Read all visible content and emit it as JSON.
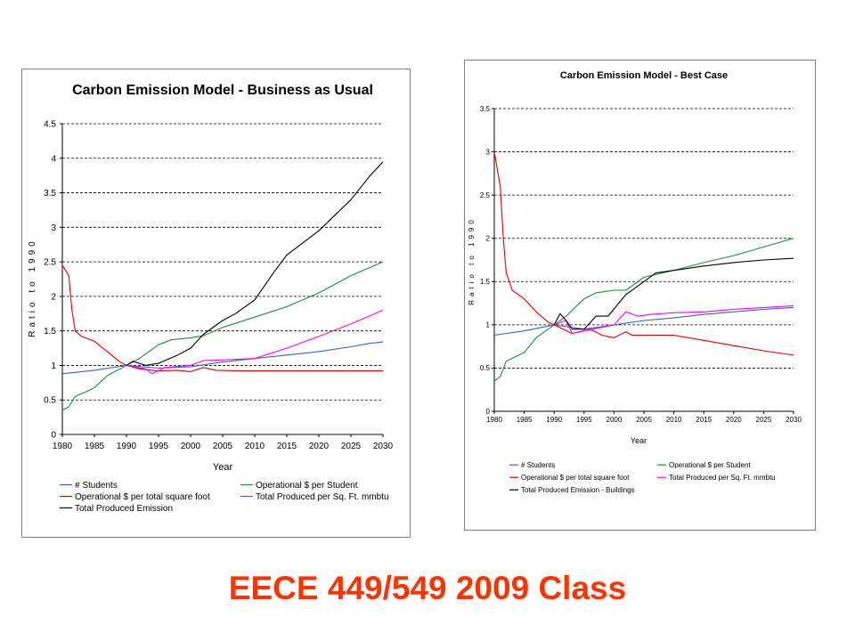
{
  "footer": {
    "text": "EECE 449/549 2009 Class",
    "color": "#ff3300"
  },
  "chart_data": [
    {
      "type": "line",
      "title": "Carbon Emission Model - Business as Usual",
      "xlabel": "Year",
      "ylabel": "Ratio to 1990",
      "xlim": [
        1980,
        2030
      ],
      "ylim": [
        0,
        4.5
      ],
      "xticks": [
        1980,
        1985,
        1990,
        1995,
        2000,
        2005,
        2010,
        2015,
        2020,
        2025,
        2030
      ],
      "yticks": [
        0,
        0.5,
        1,
        1.5,
        2,
        2.5,
        3,
        3.5,
        4,
        4.5
      ],
      "ytick_labels": [
        "0",
        "0.5",
        "1",
        "1.5",
        "2",
        "2.5",
        "3",
        "3.5",
        "4",
        "4.5"
      ],
      "grid": "horizontal dashed",
      "legend_position": "bottom",
      "series": [
        {
          "name": "# Students",
          "color": "#3a5fcd",
          "points": [
            [
              1980,
              0.88
            ],
            [
              1985,
              0.93
            ],
            [
              1990,
              1.0
            ],
            [
              1995,
              0.96
            ],
            [
              2000,
              0.98
            ],
            [
              2005,
              1.05
            ],
            [
              2010,
              1.1
            ],
            [
              2015,
              1.15
            ],
            [
              2020,
              1.2
            ],
            [
              2025,
              1.27
            ],
            [
              2028,
              1.32
            ],
            [
              2030,
              1.34
            ]
          ]
        },
        {
          "name": "Operational $ per Student",
          "color": "#1e8c3c",
          "points": [
            [
              1980,
              0.35
            ],
            [
              1981,
              0.4
            ],
            [
              1982,
              0.55
            ],
            [
              1984,
              0.63
            ],
            [
              1985,
              0.68
            ],
            [
              1987,
              0.85
            ],
            [
              1990,
              1.0
            ],
            [
              1992,
              1.1
            ],
            [
              1995,
              1.3
            ],
            [
              1997,
              1.37
            ],
            [
              2000,
              1.4
            ],
            [
              2002,
              1.43
            ],
            [
              2005,
              1.55
            ],
            [
              2010,
              1.7
            ],
            [
              2015,
              1.85
            ],
            [
              2020,
              2.05
            ],
            [
              2025,
              2.3
            ],
            [
              2030,
              2.5
            ]
          ]
        },
        {
          "name": "Operational $ per total square foot",
          "color": "#e00000",
          "points": [
            [
              1980,
              2.45
            ],
            [
              1981,
              2.3
            ],
            [
              1981.5,
              1.8
            ],
            [
              1982,
              1.5
            ],
            [
              1983,
              1.42
            ],
            [
              1985,
              1.35
            ],
            [
              1987,
              1.2
            ],
            [
              1989,
              1.05
            ],
            [
              1990,
              1.0
            ],
            [
              1992,
              0.95
            ],
            [
              1995,
              0.92
            ],
            [
              1998,
              0.93
            ],
            [
              2000,
              0.91
            ],
            [
              2002,
              0.97
            ],
            [
              2004,
              0.93
            ],
            [
              2008,
              0.92
            ],
            [
              2015,
              0.92
            ],
            [
              2020,
              0.92
            ],
            [
              2025,
              0.92
            ],
            [
              2030,
              0.92
            ]
          ]
        },
        {
          "name": "Total Produced per Sq. Ft. mmbtu",
          "color": "#ff00ff",
          "points": [
            [
              1990,
              1.0
            ],
            [
              1993,
              0.95
            ],
            [
              1994,
              0.88
            ],
            [
              1996,
              0.97
            ],
            [
              2000,
              1.0
            ],
            [
              2002,
              1.07
            ],
            [
              2005,
              1.08
            ],
            [
              2010,
              1.1
            ],
            [
              2015,
              1.25
            ],
            [
              2020,
              1.42
            ],
            [
              2025,
              1.6
            ],
            [
              2028,
              1.72
            ],
            [
              2030,
              1.8
            ]
          ]
        },
        {
          "name": "Total Produced Emission",
          "color": "#000000",
          "points": [
            [
              1990,
              1.0
            ],
            [
              1991,
              1.06
            ],
            [
              1993,
              1.0
            ],
            [
              1995,
              1.03
            ],
            [
              1998,
              1.15
            ],
            [
              2000,
              1.25
            ],
            [
              2002,
              1.45
            ],
            [
              2005,
              1.65
            ],
            [
              2007,
              1.75
            ],
            [
              2010,
              1.95
            ],
            [
              2013,
              2.35
            ],
            [
              2015,
              2.6
            ],
            [
              2020,
              2.95
            ],
            [
              2025,
              3.4
            ],
            [
              2028,
              3.75
            ],
            [
              2030,
              3.95
            ]
          ]
        }
      ]
    },
    {
      "type": "line",
      "title": "Carbon Emission Model - Best Case",
      "xlabel": "Year",
      "ylabel": "Ratio to 1990",
      "xlim": [
        1980,
        2030
      ],
      "ylim": [
        0,
        3.5
      ],
      "xticks": [
        1980,
        1985,
        1990,
        1995,
        2000,
        2005,
        2010,
        2015,
        2020,
        2025,
        2030
      ],
      "yticks": [
        0,
        0.5,
        1,
        1.5,
        2,
        2.5,
        3,
        3.5
      ],
      "ytick_labels": [
        "0",
        "0.5",
        "1",
        "1.5",
        "2",
        "2.5",
        "3",
        "3.5"
      ],
      "grid": "horizontal dashed",
      "legend_position": "bottom",
      "series": [
        {
          "name": "# Students",
          "color": "#3a5fcd",
          "points": [
            [
              1980,
              0.88
            ],
            [
              1985,
              0.93
            ],
            [
              1990,
              1.0
            ],
            [
              1995,
              0.95
            ],
            [
              2000,
              1.0
            ],
            [
              2005,
              1.05
            ],
            [
              2010,
              1.08
            ],
            [
              2015,
              1.12
            ],
            [
              2020,
              1.15
            ],
            [
              2025,
              1.18
            ],
            [
              2030,
              1.2
            ]
          ]
        },
        {
          "name": "Operational $ per Student",
          "color": "#1e8c3c",
          "points": [
            [
              1980,
              0.35
            ],
            [
              1981,
              0.4
            ],
            [
              1982,
              0.58
            ],
            [
              1985,
              0.68
            ],
            [
              1987,
              0.85
            ],
            [
              1990,
              1.0
            ],
            [
              1992,
              1.1
            ],
            [
              1995,
              1.3
            ],
            [
              1997,
              1.37
            ],
            [
              2000,
              1.4
            ],
            [
              2002,
              1.4
            ],
            [
              2005,
              1.55
            ],
            [
              2010,
              1.63
            ],
            [
              2015,
              1.72
            ],
            [
              2020,
              1.8
            ],
            [
              2025,
              1.9
            ],
            [
              2030,
              2.0
            ]
          ]
        },
        {
          "name": "Operational $ per total square foot",
          "color": "#e00000",
          "points": [
            [
              1980,
              3.0
            ],
            [
              1981,
              2.6
            ],
            [
              1981.5,
              2.0
            ],
            [
              1982,
              1.6
            ],
            [
              1983,
              1.4
            ],
            [
              1985,
              1.3
            ],
            [
              1987,
              1.15
            ],
            [
              1989,
              1.03
            ],
            [
              1990,
              1.0
            ],
            [
              1993,
              0.9
            ],
            [
              1996,
              0.95
            ],
            [
              1998,
              0.88
            ],
            [
              2000,
              0.85
            ],
            [
              2002,
              0.92
            ],
            [
              2003,
              0.88
            ],
            [
              2006,
              0.88
            ],
            [
              2010,
              0.88
            ],
            [
              2015,
              0.82
            ],
            [
              2020,
              0.76
            ],
            [
              2025,
              0.7
            ],
            [
              2030,
              0.65
            ]
          ]
        },
        {
          "name": "Total Produced per Sq. Ft. mmbtu",
          "color": "#ff00ff",
          "points": [
            [
              1990,
              1.0
            ],
            [
              1992,
              1.05
            ],
            [
              1993,
              0.9
            ],
            [
              1995,
              0.93
            ],
            [
              2000,
              1.0
            ],
            [
              2002,
              1.15
            ],
            [
              2004,
              1.1
            ],
            [
              2006,
              1.12
            ],
            [
              2010,
              1.14
            ],
            [
              2015,
              1.15
            ],
            [
              2020,
              1.18
            ],
            [
              2025,
              1.2
            ],
            [
              2030,
              1.22
            ]
          ]
        },
        {
          "name": "Total Produced Emission - Buildings",
          "color": "#000000",
          "points": [
            [
              1990,
              1.0
            ],
            [
              1991,
              1.13
            ],
            [
              1992,
              1.05
            ],
            [
              1993,
              0.95
            ],
            [
              1995,
              0.95
            ],
            [
              1997,
              1.1
            ],
            [
              1999,
              1.1
            ],
            [
              2002,
              1.35
            ],
            [
              2005,
              1.5
            ],
            [
              2007,
              1.6
            ],
            [
              2010,
              1.63
            ],
            [
              2015,
              1.68
            ],
            [
              2020,
              1.72
            ],
            [
              2025,
              1.75
            ],
            [
              2030,
              1.77
            ]
          ]
        }
      ]
    }
  ]
}
